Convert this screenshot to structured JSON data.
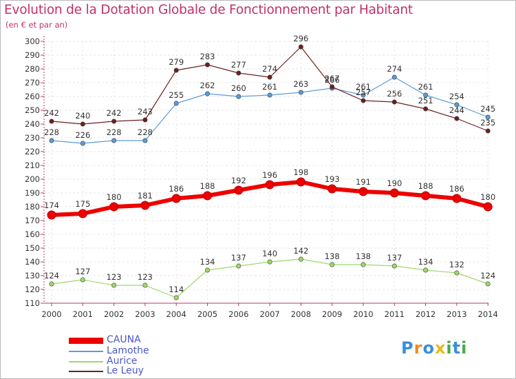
{
  "header": {
    "title": "Evolution de la Dotation Globale de Fonctionnement par Habitant",
    "subtitle": "(en € et par an)"
  },
  "logo": {
    "letters": [
      "P",
      "r",
      "o",
      "x",
      "i",
      "t",
      "i"
    ],
    "colors": [
      "#3a8fd9",
      "#f08a1c",
      "#3a8fd9",
      "#e8b820",
      "#4aa84a",
      "#3a8fd9",
      "#4aa84a"
    ]
  },
  "colors": {
    "title": "#c0306a",
    "grid_axis_ticks": "#c0306a",
    "legend_text": "#4a58c8"
  },
  "chart_data": {
    "type": "line",
    "x": [
      "2000",
      "2001",
      "2002",
      "2003",
      "2004",
      "2005",
      "2006",
      "2007",
      "2008",
      "2009",
      "2010",
      "2011",
      "2012",
      "2013",
      "2014"
    ],
    "ylim": [
      110,
      300
    ],
    "ytick_step": 10,
    "grid": true,
    "legend_position": "bottom-left",
    "series": [
      {
        "name": "CAUNA",
        "color": "#ee0000",
        "thick": true,
        "values": [
          174,
          175,
          180,
          181,
          186,
          188,
          192,
          196,
          198,
          193,
          191,
          190,
          188,
          186,
          180
        ]
      },
      {
        "name": "Lamothe",
        "color": "#5b9bd5",
        "thick": false,
        "values": [
          228,
          226,
          228,
          228,
          255,
          262,
          260,
          261,
          263,
          266,
          261,
          274,
          261,
          254,
          245
        ]
      },
      {
        "name": "Aurice",
        "color": "#9fd86a",
        "thick": false,
        "values": [
          124,
          127,
          123,
          123,
          114,
          134,
          137,
          140,
          142,
          138,
          138,
          137,
          134,
          132,
          124
        ]
      },
      {
        "name": "Le Leuy",
        "color": "#6b1f1f",
        "thick": false,
        "values": [
          242,
          240,
          242,
          243,
          279,
          283,
          277,
          274,
          296,
          267,
          257,
          256,
          251,
          244,
          235
        ]
      }
    ]
  }
}
